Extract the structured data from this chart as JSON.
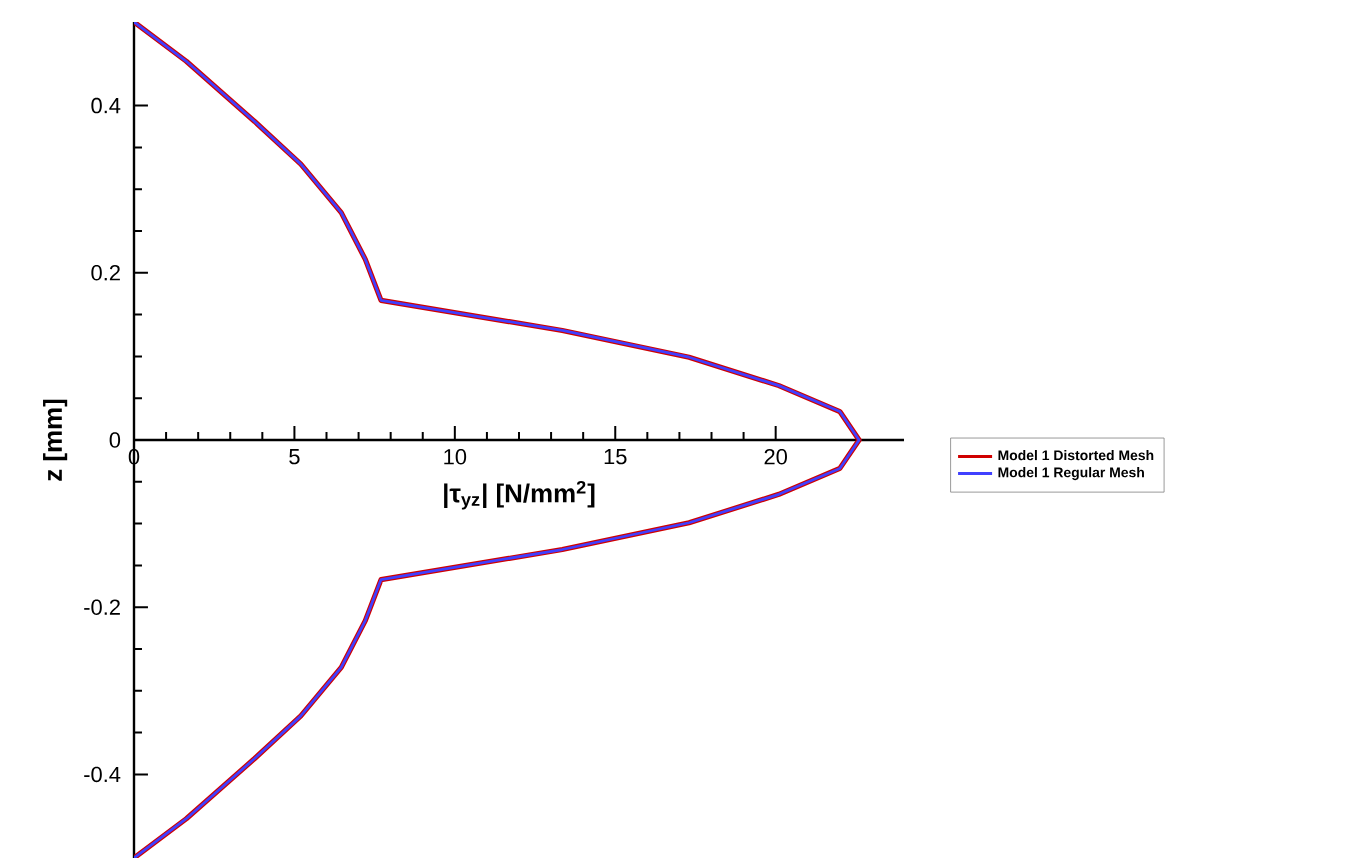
{
  "chart_data": {
    "type": "line",
    "xlabel": "|τ$_{yz}$|  [N/mm$^{2}$]",
    "ylabel": "z [mm]",
    "x": [
      0,
      1.63,
      3.76,
      5.2,
      6.46,
      7.21,
      7.7,
      13.35,
      17.3,
      20.1,
      22.0,
      22.6,
      22.0,
      20.1,
      17.3,
      13.35,
      7.7,
      7.21,
      6.46,
      5.2,
      3.76,
      1.63,
      0
    ],
    "series": [
      {
        "name": "Model 1 Distorted Mesh",
        "color": "#d00000",
        "values": [
          0.5,
          0.453,
          0.381,
          0.33,
          0.272,
          0.216,
          0.167,
          0.131,
          0.099,
          0.065,
          0.034,
          0,
          -0.034,
          -0.065,
          -0.099,
          -0.131,
          -0.167,
          -0.216,
          -0.272,
          -0.33,
          -0.381,
          -0.453,
          -0.5
        ]
      },
      {
        "name": "Model 1 Regular Mesh",
        "color": "#4040ff",
        "values": [
          0.5,
          0.453,
          0.381,
          0.33,
          0.272,
          0.216,
          0.167,
          0.131,
          0.099,
          0.065,
          0.034,
          0,
          -0.034,
          -0.065,
          -0.099,
          -0.131,
          -0.167,
          -0.216,
          -0.272,
          -0.33,
          -0.381,
          -0.453,
          -0.5
        ]
      }
    ],
    "xlim": [
      0,
      24
    ],
    "ylim": [
      -0.5,
      0.5
    ],
    "xticks": [
      0,
      5,
      10,
      15,
      20
    ],
    "yticks": [
      -0.4,
      -0.2,
      0,
      0.2,
      0.4
    ],
    "grid": false,
    "legend": "right",
    "marker": "none",
    "line_style": "solid"
  }
}
